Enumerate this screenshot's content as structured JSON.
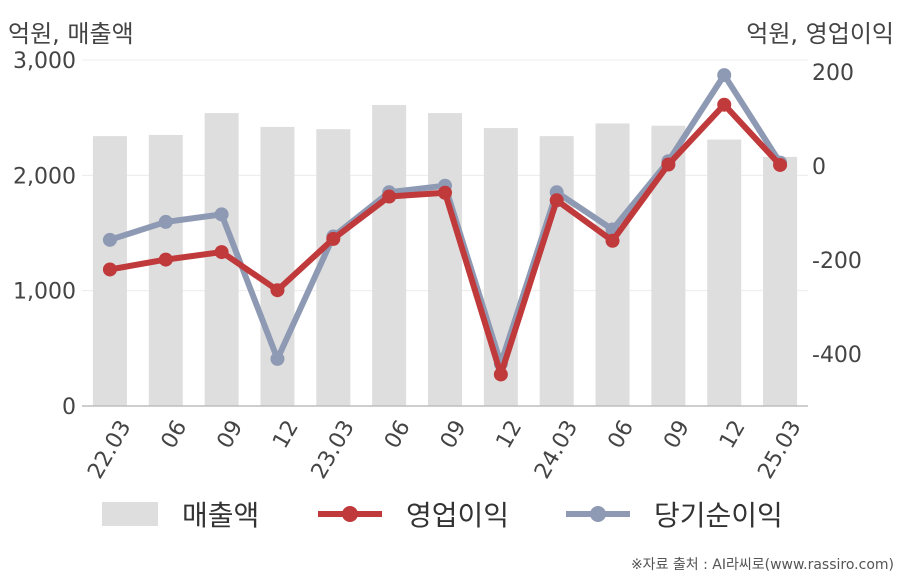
{
  "units": {
    "left": "억원, 매출액",
    "right": "억원, 영업이익"
  },
  "source": "※자료 출처 : AI라씨로(www.rassiro.com)",
  "legend": [
    {
      "label": "매출액",
      "color": "#dedede",
      "kind": "bar"
    },
    {
      "label": "영업이익",
      "color": "#c0393b",
      "kind": "line"
    },
    {
      "label": "당기순이익",
      "color": "#8e9ab3",
      "kind": "line"
    }
  ],
  "chart_data": {
    "type": "bar+line",
    "categories": [
      "22.03",
      "06",
      "09",
      "12",
      "23.03",
      "06",
      "09",
      "12",
      "24.03",
      "06",
      "09",
      "12",
      "25.03"
    ],
    "y_left": {
      "ylim": [
        0,
        3000
      ],
      "ticks": [
        "0",
        "1,000",
        "2,000",
        "3,000"
      ]
    },
    "y_right": {
      "ylim": [
        -510,
        225
      ],
      "ticks": [
        "200",
        "0",
        "-200",
        "-400"
      ]
    },
    "grid": true,
    "legend_position": "bottom",
    "series": [
      {
        "name": "매출액",
        "type": "bar",
        "axis": "left",
        "color": "#dedede",
        "values": [
          2340,
          2350,
          2540,
          2420,
          2400,
          2610,
          2540,
          2410,
          2340,
          2450,
          2430,
          2310,
          2160
        ]
      },
      {
        "name": "영업이익",
        "type": "line",
        "axis": "right",
        "color": "#c0393b",
        "values": [
          -220,
          -199,
          -183,
          -264,
          -155,
          -65,
          -57,
          -443,
          -73,
          -159,
          3,
          130,
          2
        ]
      },
      {
        "name": "당기순이익",
        "type": "line",
        "axis": "right",
        "color": "#8e9ab3",
        "values": [
          -157,
          -119,
          -103,
          -410,
          -150,
          -56,
          -42,
          -420,
          -56,
          -135,
          10,
          193,
          7
        ]
      }
    ]
  }
}
